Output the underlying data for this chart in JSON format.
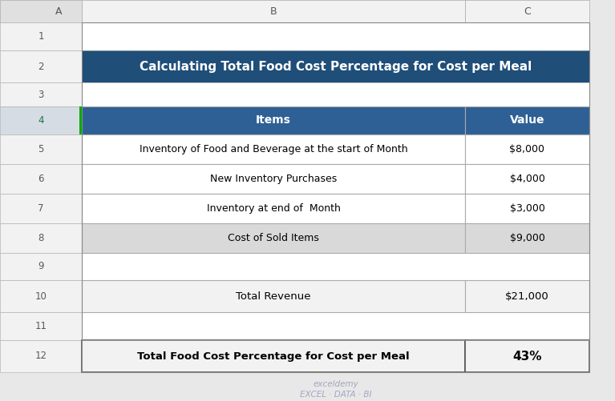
{
  "title": "Calculating Total Food Cost Percentage for Cost per Meal",
  "title_bg": "#1F4E79",
  "title_text_color": "#FFFFFF",
  "col_header": [
    "Items",
    "Value"
  ],
  "col_header_bg": "#2E6096",
  "col_header_text_color": "#FFFFFF",
  "data_rows": [
    [
      "Inventory of Food and Beverage at the start of Month",
      "$8,000"
    ],
    [
      "New Inventory Purchases",
      "$4,000"
    ],
    [
      "Inventory at end of  Month",
      "$3,000"
    ],
    [
      "Cost of Sold Items",
      "$9,000"
    ]
  ],
  "row8_bg": "#D9D9D9",
  "total_revenue_row": [
    "Total Revenue",
    "$21,000"
  ],
  "total_revenue_bg": "#F2F2F2",
  "summary_row": [
    "Total Food Cost Percentage for Cost per Meal",
    "43%"
  ],
  "summary_bg": "#F2F2F2",
  "grid_line_color": "#AAAAAA",
  "bg_color": "#E8E8E8",
  "white_area_bg": "#FFFFFF",
  "row_num_col_bg": "#F2F2F2",
  "col_header_row_bg": "#F2F2F2",
  "corner_bg": "#E0E0E0",
  "watermark_text": "exceldemy\nEXCEL · DATA · BI",
  "watermark_color": "#9999BB",
  "selected_row_bg": "#D6DCE4",
  "selected_row_num_color": "#217346",
  "normal_row_num_color": "#595959"
}
